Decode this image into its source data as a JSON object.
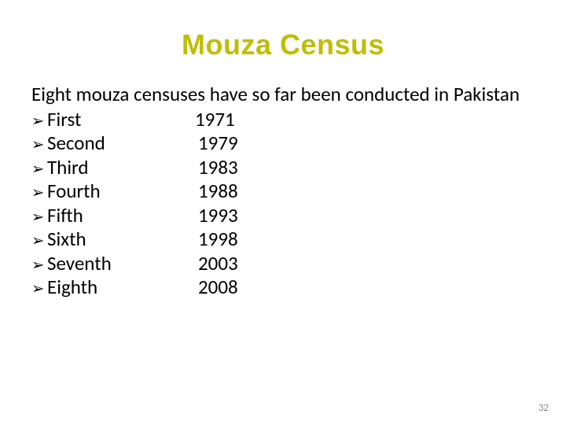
{
  "title": {
    "text": "Mouza Census",
    "color": "#bfbe04",
    "fontsize": 36
  },
  "intro": {
    "text": "Eight mouza censuses have so far been conducted in Pakistan",
    "color": "#000000",
    "fontsize": 25
  },
  "bullet_char": "➢",
  "list": {
    "fontsize": 25,
    "color": "#000000",
    "label_width_first": 188,
    "label_width_rest": 192,
    "items": [
      {
        "label": "First",
        "year": "1971",
        "first_no_space": true
      },
      {
        "label": "Second",
        "year": "1979"
      },
      {
        "label": "Third",
        "year": "1983"
      },
      {
        "label": "Fourth",
        "year": "1988"
      },
      {
        "label": "Fifth",
        "year": "1993"
      },
      {
        "label": "Sixth",
        "year": "1998"
      },
      {
        "label": "Seventh",
        "year": "2003"
      },
      {
        "label": "Eighth",
        "year": "2008"
      }
    ]
  },
  "page_number": {
    "text": "32",
    "color": "#8a8a8a",
    "fontsize": 13
  },
  "background_color": "#ffffff"
}
